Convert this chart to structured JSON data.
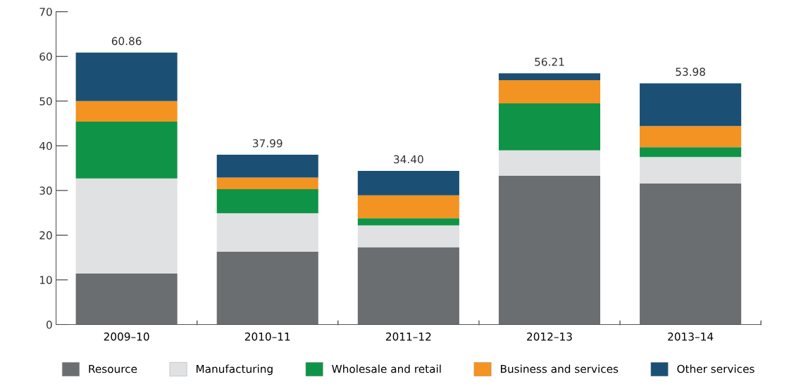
{
  "chart_data": {
    "type": "bar",
    "stacked": true,
    "categories": [
      "2009–10",
      "2010–11",
      "2011–12",
      "2012–13",
      "2013–14"
    ],
    "series": [
      {
        "name": "Resource",
        "color": "#6b6e71",
        "values": [
          11.4,
          16.3,
          17.3,
          33.3,
          31.6
        ]
      },
      {
        "name": "Manufacturing",
        "color": "#dfe1e3",
        "values": [
          21.3,
          8.6,
          4.9,
          5.7,
          5.9
        ]
      },
      {
        "name": "Wholesale and retail",
        "color": "#0f9447",
        "values": [
          12.7,
          5.4,
          1.6,
          10.5,
          2.2
        ]
      },
      {
        "name": "Business and services",
        "color": "#f39321",
        "values": [
          4.6,
          2.6,
          5.1,
          5.2,
          4.7
        ]
      },
      {
        "name": "Other services",
        "color": "#1b5074",
        "values": [
          10.86,
          5.09,
          5.5,
          1.51,
          9.58
        ]
      }
    ],
    "totals": [
      "60.86",
      "37.99",
      "34.40",
      "56.21",
      "53.98"
    ],
    "ylim": [
      0,
      70
    ],
    "yticks": [
      0,
      10,
      20,
      30,
      40,
      50,
      60,
      70
    ],
    "grid": false,
    "legend": "bottom"
  }
}
